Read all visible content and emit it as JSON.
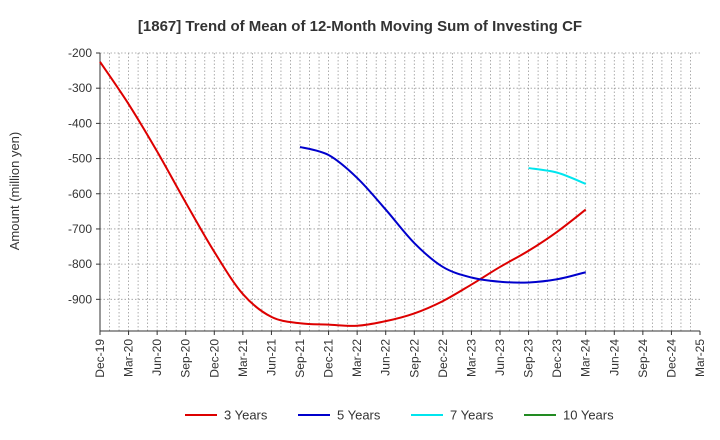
{
  "chart_data": {
    "type": "line",
    "title": "[1867]  Trend of Mean of 12-Month Moving Sum of Investing CF",
    "ylabel": "Amount (million yen)",
    "xlabel": "",
    "ylim": [
      -200,
      -990
    ],
    "yticks": [
      -200,
      -300,
      -400,
      -500,
      -600,
      -700,
      -800,
      -900
    ],
    "x_categories": [
      "Dec-19",
      "Mar-20",
      "Jun-20",
      "Sep-20",
      "Dec-20",
      "Mar-21",
      "Jun-21",
      "Sep-21",
      "Dec-21",
      "Mar-22",
      "Jun-22",
      "Sep-22",
      "Dec-22",
      "Mar-23",
      "Jun-23",
      "Sep-23",
      "Dec-23",
      "Mar-24",
      "Jun-24",
      "Sep-24",
      "Dec-24",
      "Mar-25"
    ],
    "grid": true,
    "legend_position": "bottom",
    "series": [
      {
        "name": "3 Years",
        "color": "#dd0000",
        "points": [
          [
            "Dec-19",
            -225
          ],
          [
            "Mar-20",
            -345
          ],
          [
            "Jun-20",
            -480
          ],
          [
            "Sep-20",
            -625
          ],
          [
            "Dec-20",
            -765
          ],
          [
            "Mar-21",
            -885
          ],
          [
            "Jun-21",
            -950
          ],
          [
            "Sep-21",
            -968
          ],
          [
            "Dec-21",
            -972
          ],
          [
            "Mar-22",
            -975
          ],
          [
            "Jun-22",
            -962
          ],
          [
            "Sep-22",
            -940
          ],
          [
            "Dec-22",
            -905
          ],
          [
            "Mar-23",
            -858
          ],
          [
            "Jun-23",
            -808
          ],
          [
            "Sep-23",
            -762
          ],
          [
            "Dec-23",
            -708
          ],
          [
            "Mar-24",
            -645
          ]
        ]
      },
      {
        "name": "5 Years",
        "color": "#0000cc",
        "points": [
          [
            "Sep-21",
            -467
          ],
          [
            "Dec-21",
            -490
          ],
          [
            "Mar-22",
            -555
          ],
          [
            "Jun-22",
            -645
          ],
          [
            "Sep-22",
            -740
          ],
          [
            "Dec-22",
            -808
          ],
          [
            "Mar-23",
            -838
          ],
          [
            "Jun-23",
            -850
          ],
          [
            "Sep-23",
            -852
          ],
          [
            "Dec-23",
            -843
          ],
          [
            "Mar-24",
            -823
          ]
        ]
      },
      {
        "name": "7 Years",
        "color": "#00e5ee",
        "points": [
          [
            "Sep-23",
            -527
          ],
          [
            "Dec-23",
            -540
          ],
          [
            "Mar-24",
            -572
          ]
        ]
      },
      {
        "name": "10 Years",
        "color": "#228b22",
        "points": []
      }
    ]
  }
}
